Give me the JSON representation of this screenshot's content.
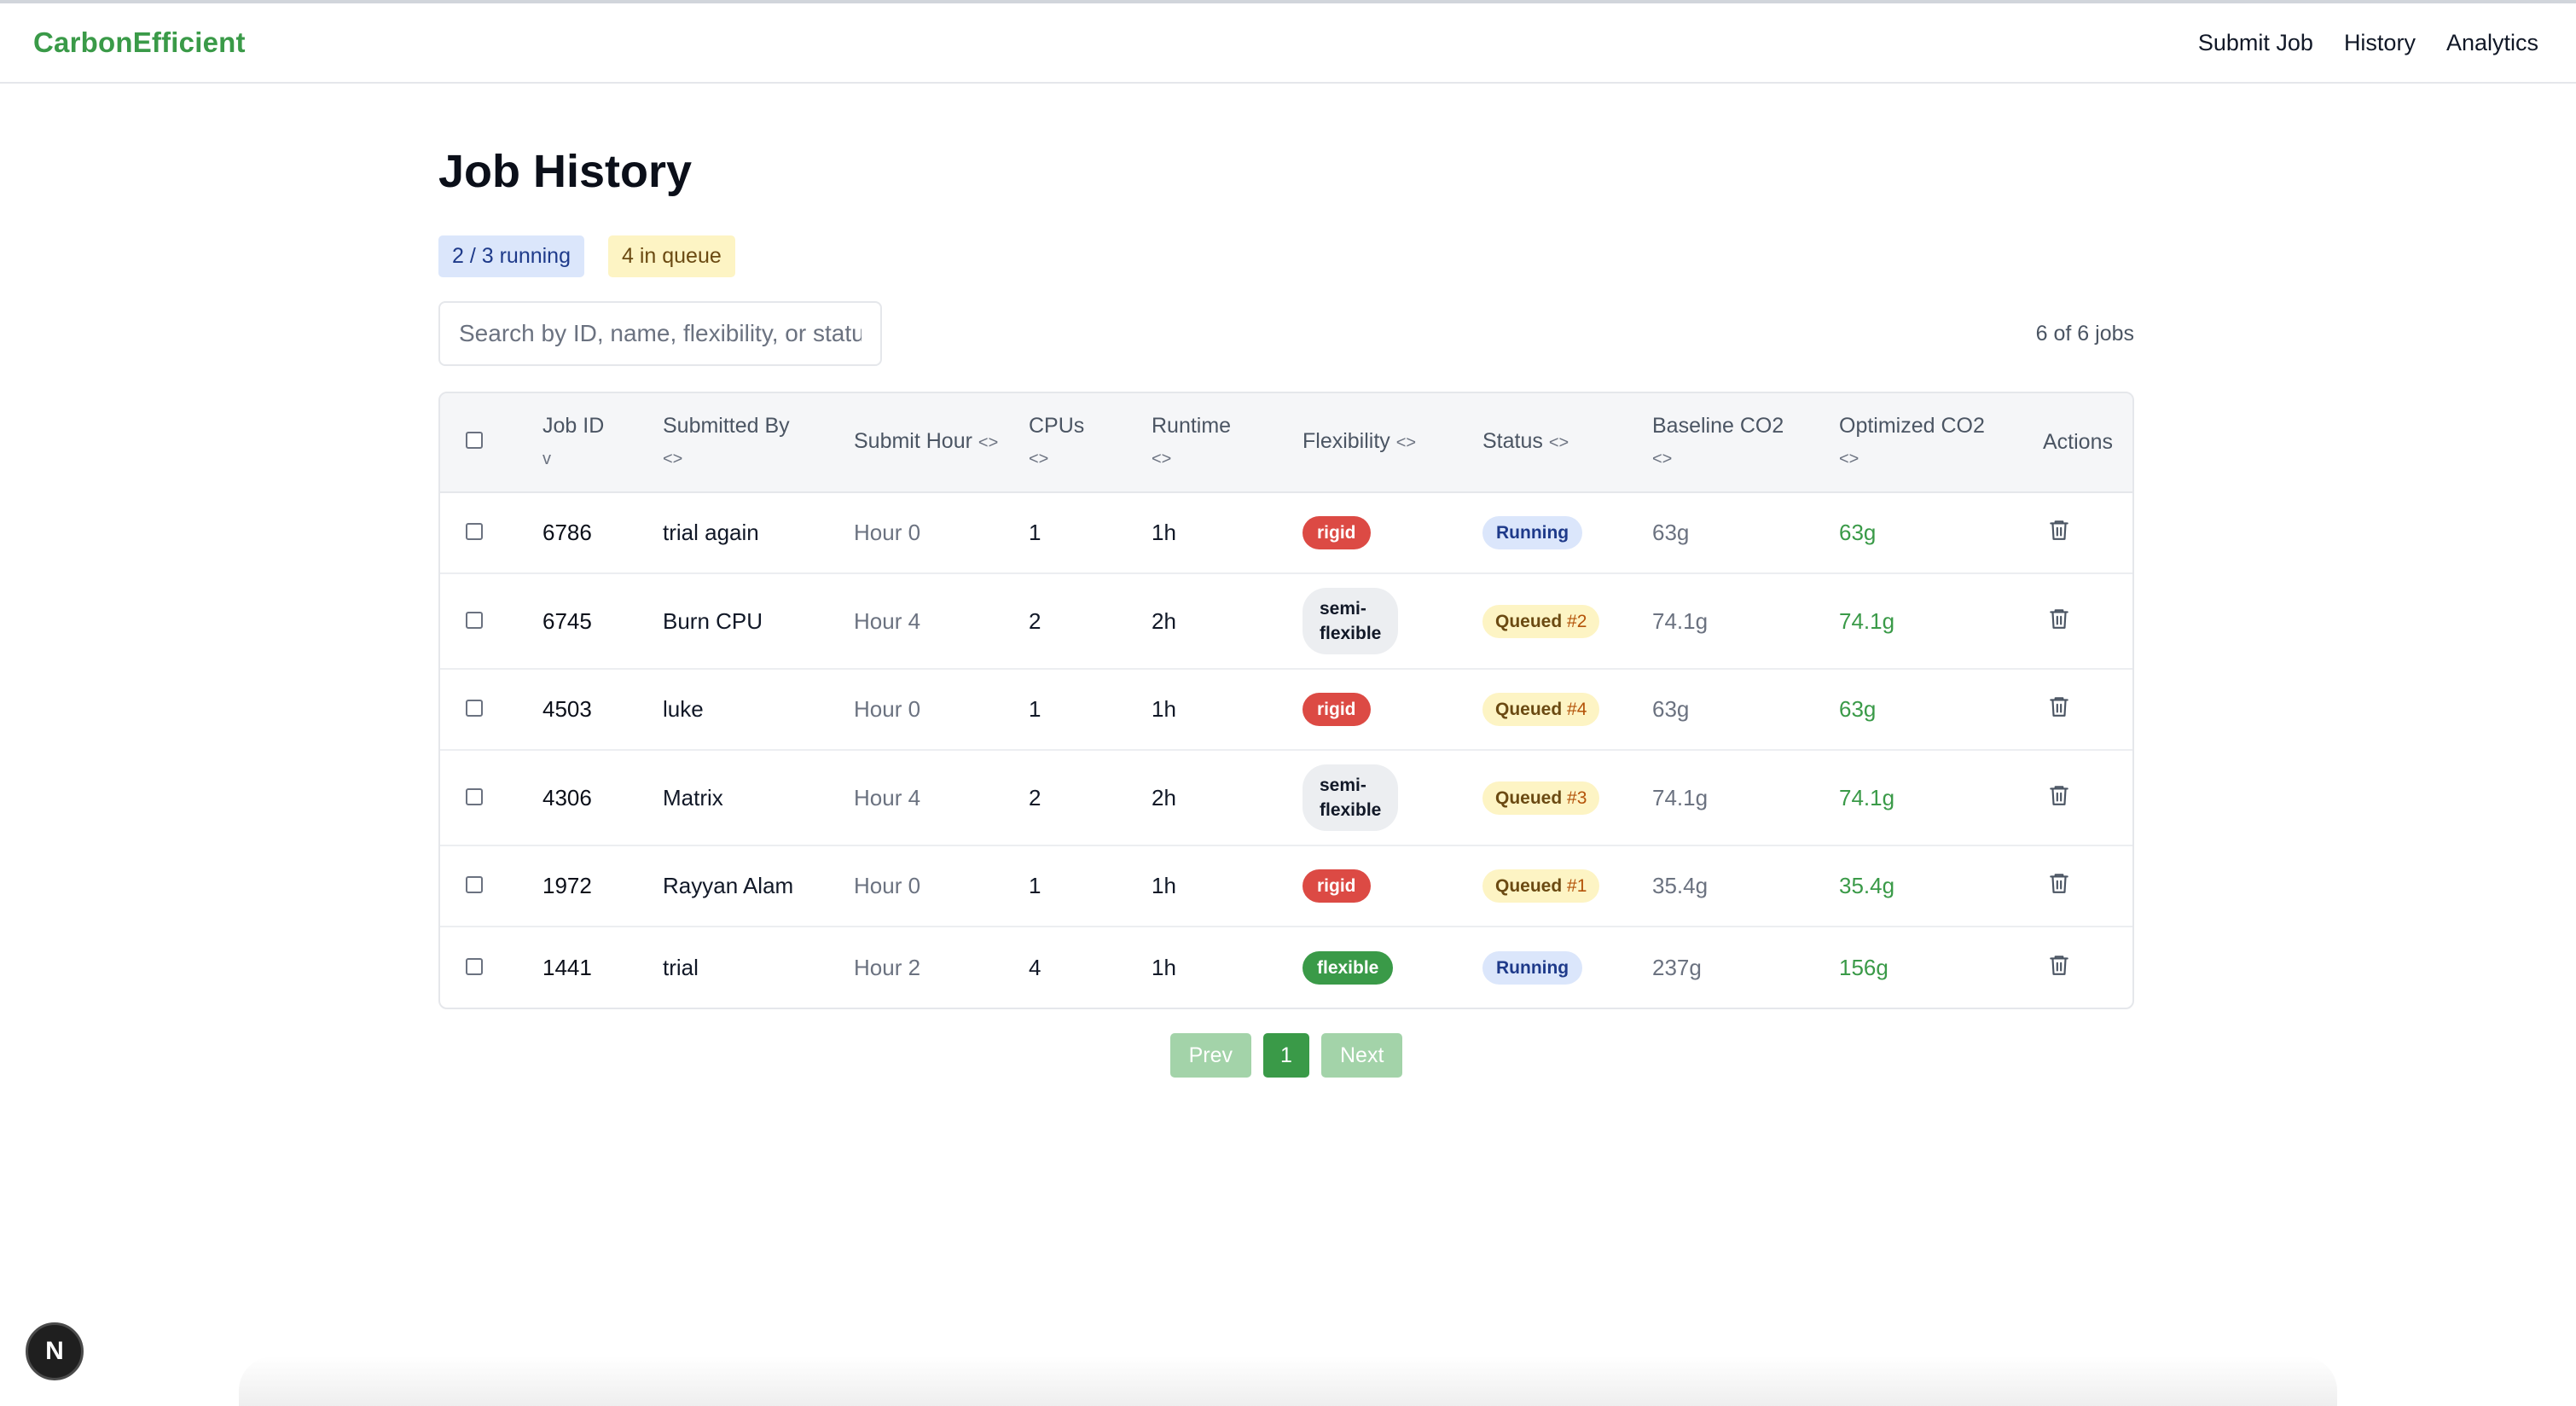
{
  "nav": {
    "brand": "CarbonEfficient",
    "links": [
      "Submit Job",
      "History",
      "Analytics"
    ]
  },
  "page": {
    "title": "Job History",
    "running_badge": "2 / 3 running",
    "queue_badge": "4 in queue",
    "search_placeholder": "Search by ID, name, flexibility, or status",
    "job_count": "6 of 6 jobs"
  },
  "table": {
    "headers": {
      "job_id": "Job ID",
      "job_id_sort": "v",
      "submitted_by": "Submitted By",
      "submitted_by_sort": "<>",
      "submit_hour": "Submit Hour",
      "submit_hour_sort": "<>",
      "cpus": "CPUs",
      "cpus_sort": "<>",
      "runtime": "Runtime",
      "runtime_sort": "<>",
      "flexibility": "Flexibility",
      "flexibility_sort": "<>",
      "status": "Status",
      "status_sort": "<>",
      "baseline": "Baseline CO2",
      "baseline_sort": "<>",
      "optimized": "Optimized CO2",
      "optimized_sort": "<>",
      "actions": "Actions"
    },
    "rows": [
      {
        "id": "6786",
        "by": "trial again",
        "hour": "Hour 0",
        "cpus": "1",
        "runtime": "1h",
        "flex": "rigid",
        "status": "Running",
        "queue_num": "",
        "baseline": "63g",
        "optimized": "63g"
      },
      {
        "id": "6745",
        "by": "Burn CPU",
        "hour": "Hour 4",
        "cpus": "2",
        "runtime": "2h",
        "flex": "semi-flexible",
        "flex_line1": "semi-",
        "flex_line2": "flexible",
        "status": "Queued",
        "queue_num": "#2",
        "baseline": "74.1g",
        "optimized": "74.1g"
      },
      {
        "id": "4503",
        "by": "luke",
        "hour": "Hour 0",
        "cpus": "1",
        "runtime": "1h",
        "flex": "rigid",
        "status": "Queued",
        "queue_num": "#4",
        "baseline": "63g",
        "optimized": "63g"
      },
      {
        "id": "4306",
        "by": "Matrix",
        "hour": "Hour 4",
        "cpus": "2",
        "runtime": "2h",
        "flex": "semi-flexible",
        "flex_line1": "semi-",
        "flex_line2": "flexible",
        "status": "Queued",
        "queue_num": "#3",
        "baseline": "74.1g",
        "optimized": "74.1g"
      },
      {
        "id": "1972",
        "by": "Rayyan Alam",
        "hour": "Hour 0",
        "cpus": "1",
        "runtime": "1h",
        "flex": "rigid",
        "status": "Queued",
        "queue_num": "#1",
        "baseline": "35.4g",
        "optimized": "35.4g"
      },
      {
        "id": "1441",
        "by": "trial",
        "hour": "Hour 2",
        "cpus": "4",
        "runtime": "1h",
        "flex": "flexible",
        "status": "Running",
        "queue_num": "",
        "baseline": "237g",
        "optimized": "156g"
      }
    ]
  },
  "pagination": {
    "prev": "Prev",
    "current": "1",
    "next": "Next"
  },
  "fab_letter": "N",
  "colors": {
    "brand_green": "#3a9a48",
    "rigid_red": "#dc4a44",
    "running_blue_bg": "#dbe6fb",
    "queued_yellow_bg": "#fdf4c4"
  }
}
